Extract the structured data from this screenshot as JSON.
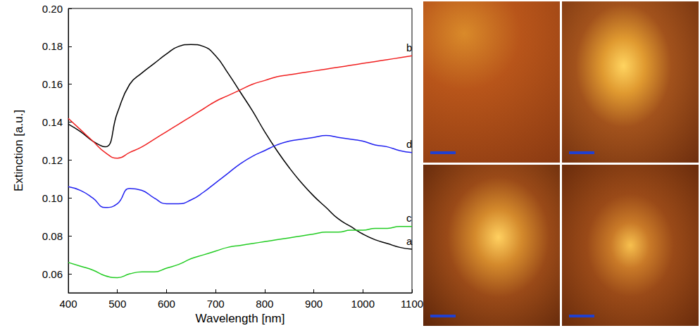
{
  "chart_data": {
    "type": "line",
    "x_label": "Wavelength [nm]",
    "y_label": "Extinction [a.u.]",
    "x": [
      400,
      425,
      450,
      475,
      500,
      525,
      550,
      575,
      600,
      625,
      650,
      675,
      700,
      725,
      750,
      775,
      800,
      825,
      850,
      875,
      900,
      925,
      950,
      975,
      1000,
      1025,
      1050,
      1075,
      1100
    ],
    "xlim": [
      400,
      1100
    ],
    "xticks": [
      400,
      500,
      600,
      700,
      800,
      900,
      1000,
      1100
    ],
    "ylim": [
      0.05,
      0.2
    ],
    "yticks": [
      0.06,
      0.08,
      {
        "value": 0.1,
        "label": "0.10"
      },
      0.12,
      0.14,
      0.16,
      0.18,
      {
        "value": 0.2,
        "label": "0.20"
      }
    ],
    "grid": false,
    "series": [
      {
        "name": "a",
        "color": "#000000",
        "values": [
          0.139,
          0.135,
          0.13,
          0.127,
          0.145,
          0.16,
          0.166,
          0.171,
          0.176,
          0.18,
          0.181,
          0.18,
          0.175,
          0.166,
          0.156,
          0.146,
          0.135,
          0.125,
          0.116,
          0.108,
          0.101,
          0.095,
          0.089,
          0.085,
          0.081,
          0.078,
          0.076,
          0.074,
          0.073
        ]
      },
      {
        "name": "b",
        "color": "#f02020",
        "values": [
          0.142,
          0.136,
          0.13,
          0.124,
          0.121,
          0.124,
          0.127,
          0.131,
          0.135,
          0.139,
          0.143,
          0.147,
          0.151,
          0.154,
          0.157,
          0.16,
          0.162,
          0.164,
          0.165,
          0.166,
          0.167,
          0.168,
          0.169,
          0.17,
          0.171,
          0.172,
          0.173,
          0.174,
          0.175
        ]
      },
      {
        "name": "c",
        "color": "#22cc22",
        "values": [
          0.066,
          0.064,
          0.062,
          0.059,
          0.058,
          0.06,
          0.061,
          0.061,
          0.063,
          0.065,
          0.068,
          0.07,
          0.072,
          0.074,
          0.075,
          0.076,
          0.077,
          0.078,
          0.079,
          0.08,
          0.081,
          0.082,
          0.082,
          0.083,
          0.083,
          0.084,
          0.084,
          0.085,
          0.085
        ]
      },
      {
        "name": "d",
        "color": "#2020f0",
        "values": [
          0.106,
          0.104,
          0.1,
          0.095,
          0.097,
          0.105,
          0.104,
          0.1,
          0.097,
          0.097,
          0.099,
          0.103,
          0.108,
          0.113,
          0.118,
          0.122,
          0.125,
          0.128,
          0.13,
          0.131,
          0.132,
          0.133,
          0.132,
          0.131,
          0.13,
          0.128,
          0.127,
          0.125,
          0.124
        ]
      }
    ]
  }
}
